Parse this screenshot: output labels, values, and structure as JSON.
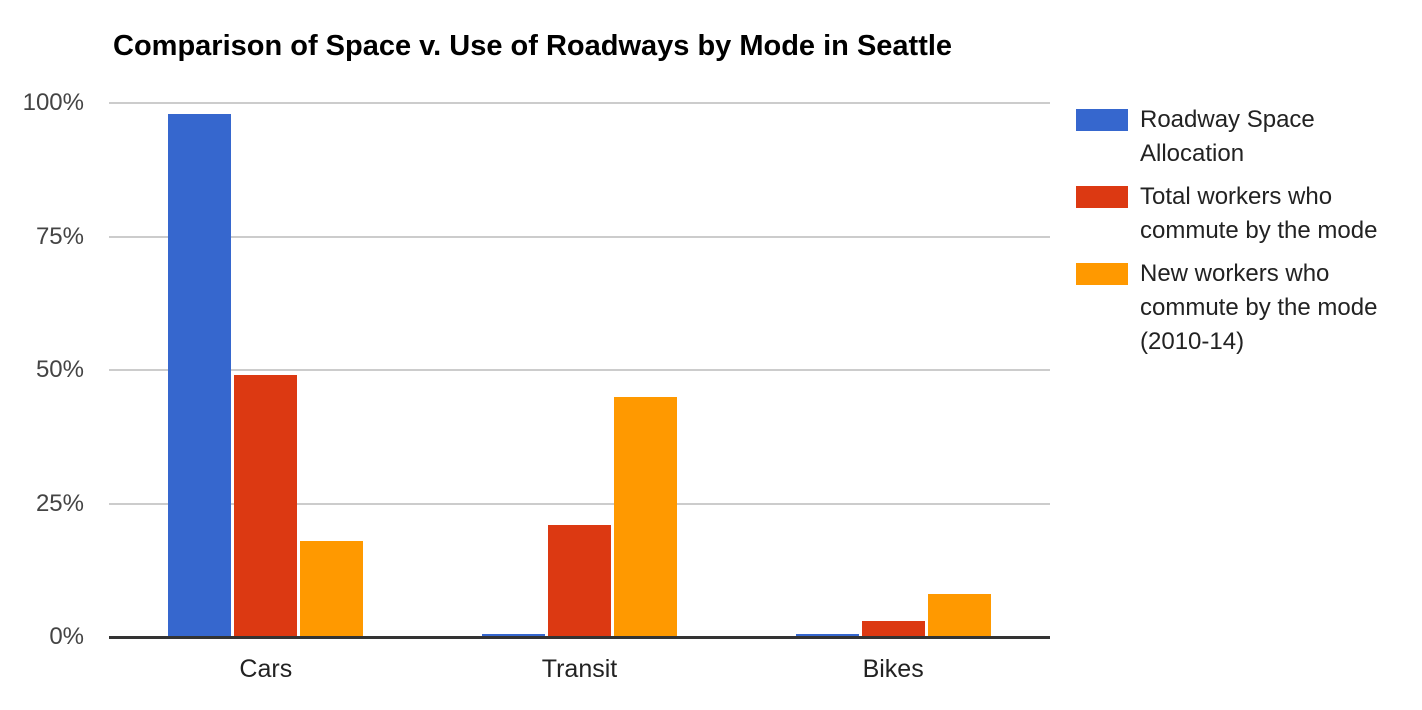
{
  "title": "Comparison of Space v. Use of Roadways by Mode in Seattle",
  "chart_data": {
    "type": "bar",
    "title": "Comparison of Space v. Use of Roadways by Mode in Seattle",
    "categories": [
      "Cars",
      "Transit",
      "Bikes"
    ],
    "series": [
      {
        "name": "Roadway Space Allocation",
        "color": "#3667CE",
        "values": [
          98,
          0.5,
          0.5
        ]
      },
      {
        "name": "Total workers who commute by the mode",
        "color": "#DC3912",
        "values": [
          49,
          21,
          3
        ]
      },
      {
        "name": "New workers who commute by the mode (2010-14)",
        "color": "#FF9900",
        "values": [
          18,
          45,
          8
        ]
      }
    ],
    "xlabel": "",
    "ylabel": "",
    "ylim": [
      0,
      100
    ],
    "yticks": [
      {
        "value": 0,
        "label": "0%"
      },
      {
        "value": 25,
        "label": "25%"
      },
      {
        "value": 50,
        "label": "50%"
      },
      {
        "value": 75,
        "label": "75%"
      },
      {
        "value": 100,
        "label": "100%"
      }
    ],
    "grid": true,
    "legend_position": "right"
  },
  "colors": {
    "background": "#FFFFFF",
    "title_text": "#000000",
    "gridline": "#CCCCCC",
    "axis_line": "#333333",
    "ytick_text": "#444444",
    "category_text": "#222222",
    "legend_text": "#222222"
  }
}
